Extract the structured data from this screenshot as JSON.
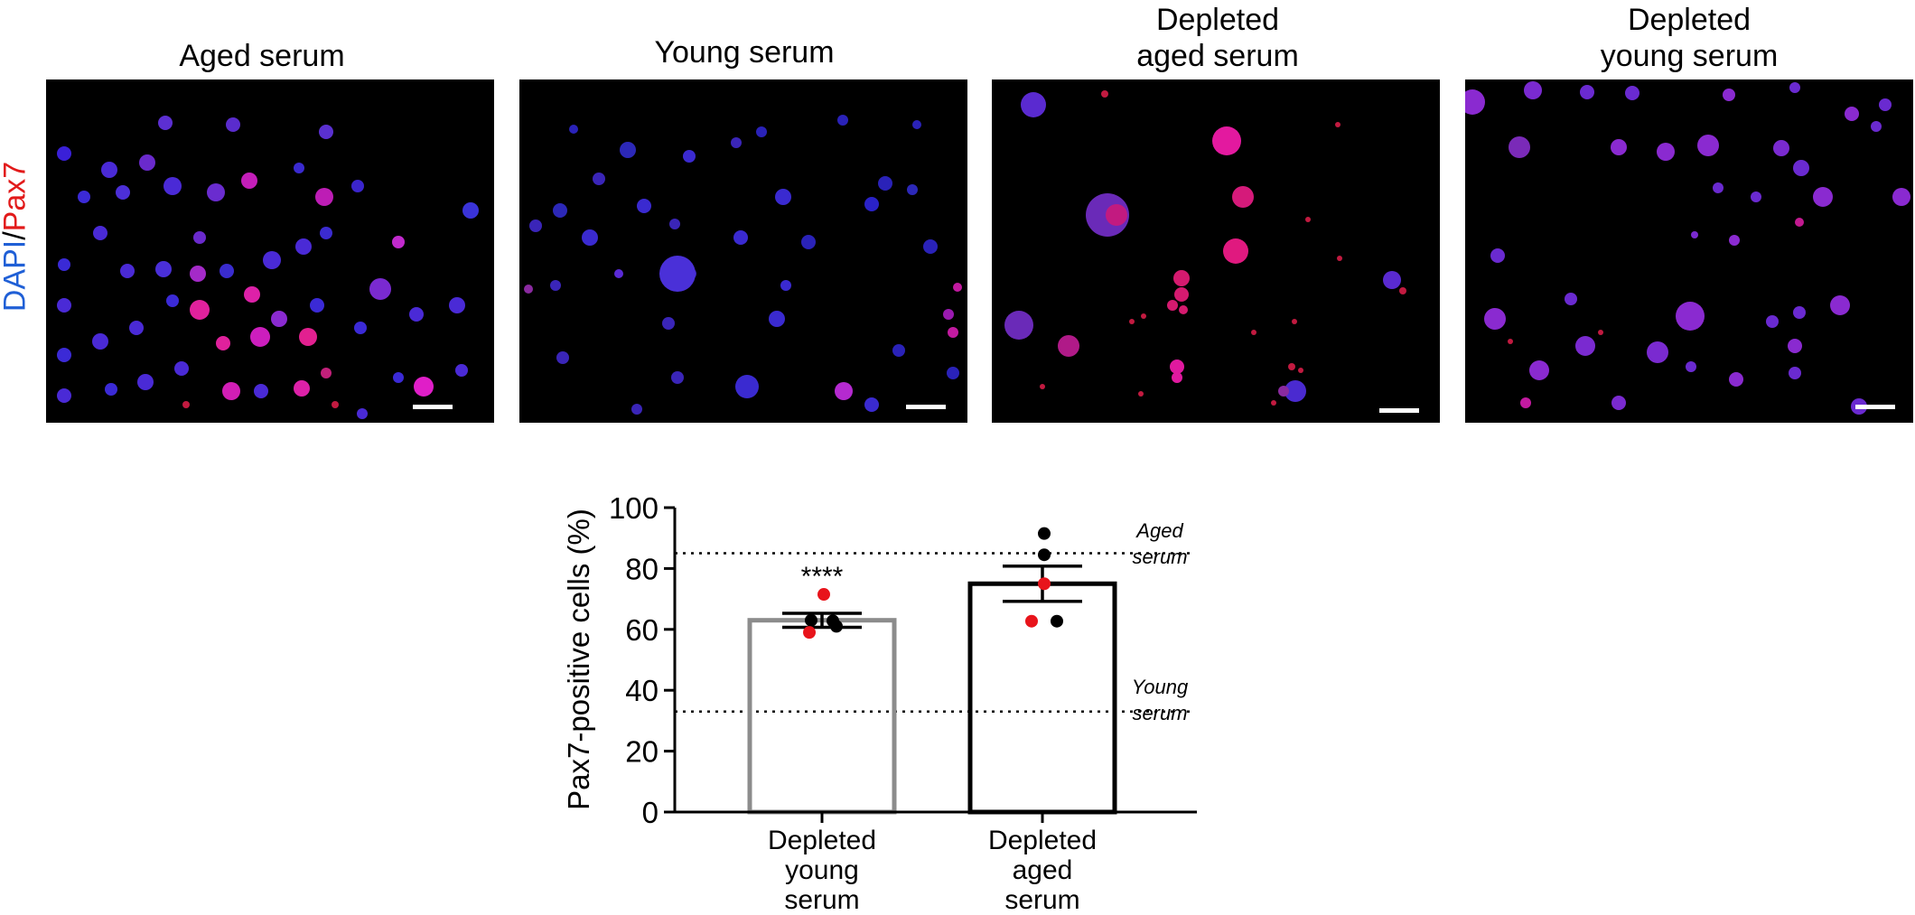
{
  "panels": [
    {
      "title": "Aged serum"
    },
    {
      "title": "Young serum"
    },
    {
      "title": "Depleted\naged serum"
    },
    {
      "title": "Depleted\nyoung serum"
    }
  ],
  "stain_label": {
    "dapi": "DAPI",
    "sep": "/",
    "pax7": "Pax7"
  },
  "colors": {
    "dapi": "#1f5fd6",
    "pax7": "#e21a1a",
    "bar_depleted_young": "#8c8c8c",
    "bar_depleted_aged": "#000000",
    "point_red": "#e8141b",
    "point_black": "#000000"
  },
  "chart_data": {
    "type": "bar",
    "categories": [
      "Depleted\nyoung\nserum",
      "Depleted\naged\nserum"
    ],
    "values": [
      63,
      75
    ],
    "errors": [
      2.3,
      5.8
    ],
    "points": [
      [
        {
          "y": 71.5,
          "color": "red"
        },
        {
          "y": 63,
          "color": "black"
        },
        {
          "y": 62.8,
          "color": "black"
        },
        {
          "y": 61,
          "color": "black"
        },
        {
          "y": 59,
          "color": "red"
        }
      ],
      [
        {
          "y": 91.5,
          "color": "black"
        },
        {
          "y": 84.5,
          "color": "black"
        },
        {
          "y": 75,
          "color": "red"
        },
        {
          "y": 62.7,
          "color": "red"
        },
        {
          "y": 62.7,
          "color": "black"
        }
      ]
    ],
    "ylabel": "Pax7-positive cells (%)",
    "xlabel": "",
    "ylim": [
      0,
      100
    ],
    "yticks": [
      "0",
      "20",
      "40",
      "60",
      "80",
      "100"
    ],
    "reference_lines": [
      {
        "y": 85,
        "label": "Aged\nserum"
      },
      {
        "y": 33,
        "label": "Young\nserum"
      }
    ],
    "significance": "****",
    "grid": false
  }
}
